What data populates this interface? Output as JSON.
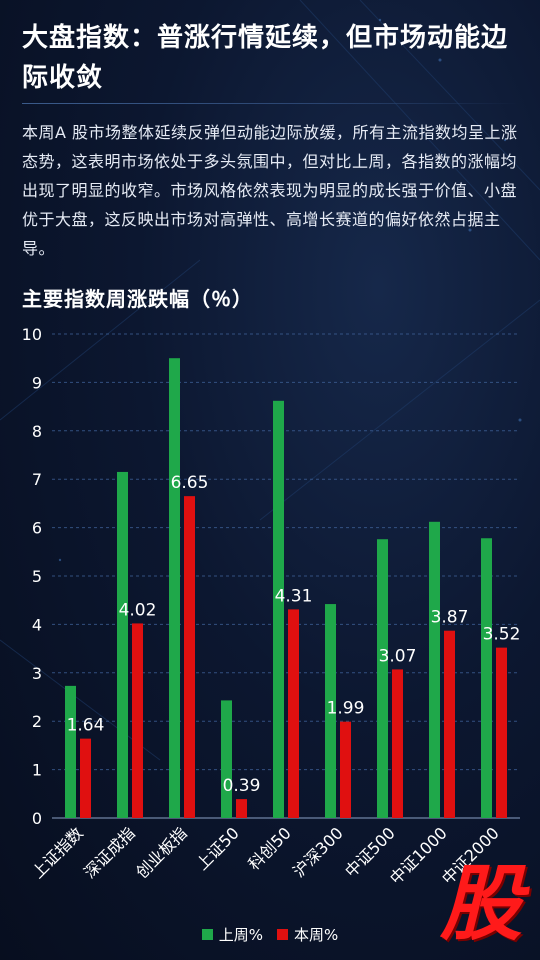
{
  "article": {
    "title": "大盘指数：普涨行情延续，但市场动能边际收敛",
    "body": "本周A 股市场整体延续反弹但动能边际放缓，所有主流指数均呈上涨态势，这表明市场依处于多头氛围中，但对比上周，各指数的涨幅均出现了明显的收窄。市场风格依然表现为明显的成长强于价值、小盘优于大盘，这反映出市场对高弹性、高增长赛道的偏好依然占据主导。"
  },
  "watermark": {
    "char": "股"
  },
  "chart_data": {
    "type": "bar",
    "title": "主要指数周涨跌幅（％）",
    "categories": [
      "上证指数",
      "深证成指",
      "创业板指",
      "上证50",
      "科创50",
      "沪深300",
      "中证500",
      "中证1000",
      "中证2000"
    ],
    "series": [
      {
        "name": "上周%",
        "values": [
          2.73,
          7.15,
          9.5,
          2.43,
          8.62,
          4.42,
          5.76,
          6.12,
          5.78
        ],
        "color": "#1fa84a"
      },
      {
        "name": "本周%",
        "values": [
          1.64,
          4.02,
          6.65,
          0.39,
          4.31,
          1.99,
          3.07,
          3.87,
          3.52
        ],
        "color": "#e01010"
      }
    ],
    "data_labels_series": "本周%",
    "ylim": [
      0,
      10
    ],
    "yticks": [
      0,
      1,
      2,
      3,
      4,
      5,
      6,
      7,
      8,
      9,
      10
    ],
    "grid": true,
    "legend": "bottom"
  }
}
